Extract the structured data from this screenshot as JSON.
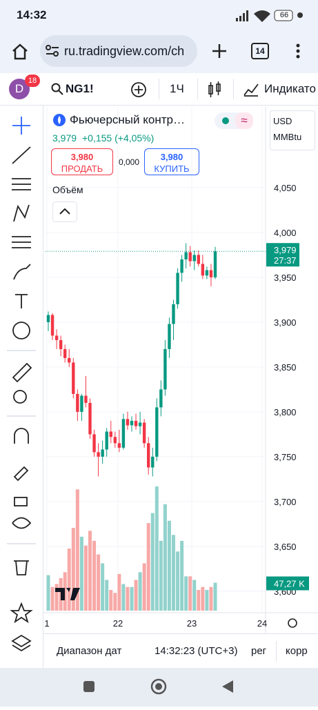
{
  "status_bar": {
    "time": "14:32",
    "battery": "66"
  },
  "browser": {
    "url": "ru.tradingview.com/ch",
    "tabs": "14"
  },
  "toolbar": {
    "avatar": "D",
    "badge": "18",
    "symbol": "NG1!",
    "interval": "1Ч",
    "indicators": "Индикато"
  },
  "legend": {
    "title": "Фьючерсный контр…",
    "price": "3,979",
    "change": "+0,155 (+4,05%)",
    "sell_price": "3,980",
    "sell": "ПРОДАТЬ",
    "spread": "0,000",
    "buy_price": "3,980",
    "buy": "КУПИТЬ",
    "volume_label": "Объём"
  },
  "currency": "USD",
  "unit": "MMBtu",
  "bottom_bar": {
    "date_range": "Диапазон дат",
    "clock": "14:32:23 (UTC+3)",
    "session": "рег",
    "adjust": "корр"
  },
  "chart_data": {
    "type": "candlestick",
    "open": [
      3.9,
      3.908,
      3.885,
      3.88,
      3.87,
      3.86,
      3.855,
      3.82,
      3.8,
      3.818,
      3.81,
      3.775,
      3.755,
      3.75,
      3.758,
      3.778,
      3.772,
      3.765,
      3.76,
      3.792,
      3.785,
      3.79,
      3.784,
      3.788,
      3.765,
      3.738,
      3.75,
      3.805,
      3.825,
      3.87,
      3.898,
      3.92,
      3.955,
      3.97,
      3.978,
      3.968,
      3.975,
      3.965,
      3.952,
      3.958,
      3.95
    ],
    "high": [
      3.912,
      3.91,
      3.892,
      3.885,
      3.875,
      3.87,
      3.86,
      3.825,
      3.82,
      3.84,
      3.815,
      3.78,
      3.765,
      3.768,
      3.782,
      3.79,
      3.778,
      3.78,
      3.798,
      3.8,
      3.795,
      3.798,
      3.8,
      3.792,
      3.772,
      3.76,
      3.815,
      3.835,
      3.88,
      3.905,
      3.925,
      3.96,
      3.975,
      3.988,
      3.985,
      3.98,
      3.98,
      3.975,
      3.962,
      3.965,
      3.984
    ],
    "low": [
      3.89,
      3.88,
      3.87,
      3.862,
      3.855,
      3.85,
      3.815,
      3.79,
      3.79,
      3.805,
      3.77,
      3.75,
      3.728,
      3.742,
      3.75,
      3.765,
      3.76,
      3.755,
      3.758,
      3.78,
      3.778,
      3.78,
      3.775,
      3.76,
      3.73,
      3.728,
      3.745,
      3.795,
      3.818,
      3.86,
      3.88,
      3.915,
      3.945,
      3.96,
      3.962,
      3.958,
      3.962,
      3.948,
      3.948,
      3.94,
      3.948
    ],
    "close": [
      3.908,
      3.885,
      3.88,
      3.87,
      3.86,
      3.855,
      3.82,
      3.8,
      3.818,
      3.81,
      3.775,
      3.755,
      3.75,
      3.758,
      3.778,
      3.772,
      3.765,
      3.76,
      3.792,
      3.785,
      3.79,
      3.784,
      3.788,
      3.765,
      3.738,
      3.75,
      3.805,
      3.825,
      3.87,
      3.898,
      3.92,
      3.955,
      3.97,
      3.978,
      3.968,
      3.975,
      3.965,
      3.952,
      3.958,
      3.95,
      3.979
    ],
    "volume": [
      60,
      40,
      45,
      55,
      65,
      105,
      140,
      205,
      125,
      110,
      135,
      118,
      95,
      80,
      52,
      35,
      30,
      62,
      45,
      40,
      40,
      52,
      65,
      80,
      148,
      165,
      210,
      118,
      180,
      152,
      128,
      100,
      118,
      58,
      58,
      52,
      35,
      40,
      35,
      40,
      47.27
    ],
    "last_price": 3.979,
    "last_price_label": "3,979",
    "countdown": "27:37",
    "last_volume_label": "47,27 K",
    "up_color": "#089981",
    "down_color": "#f23645",
    "volume_up_color": "#92d2cc",
    "volume_down_color": "#f7a9a7",
    "ylim": [
      3.576,
      4.14
    ],
    "yticks": [
      {
        "value": 3.6,
        "label": "3,600"
      },
      {
        "value": 3.65,
        "label": "3,650"
      },
      {
        "value": 3.7,
        "label": "3,700"
      },
      {
        "value": 3.75,
        "label": "3,750"
      },
      {
        "value": 3.8,
        "label": "3,800"
      },
      {
        "value": 3.85,
        "label": "3,850"
      },
      {
        "value": 3.9,
        "label": "3,900"
      },
      {
        "value": 3.95,
        "label": "3,950"
      },
      {
        "value": 4.0,
        "label": "4,000"
      },
      {
        "value": 4.05,
        "label": "4,050"
      }
    ],
    "xticks": [
      "1",
      "22",
      "23",
      "24"
    ],
    "grid": true
  }
}
